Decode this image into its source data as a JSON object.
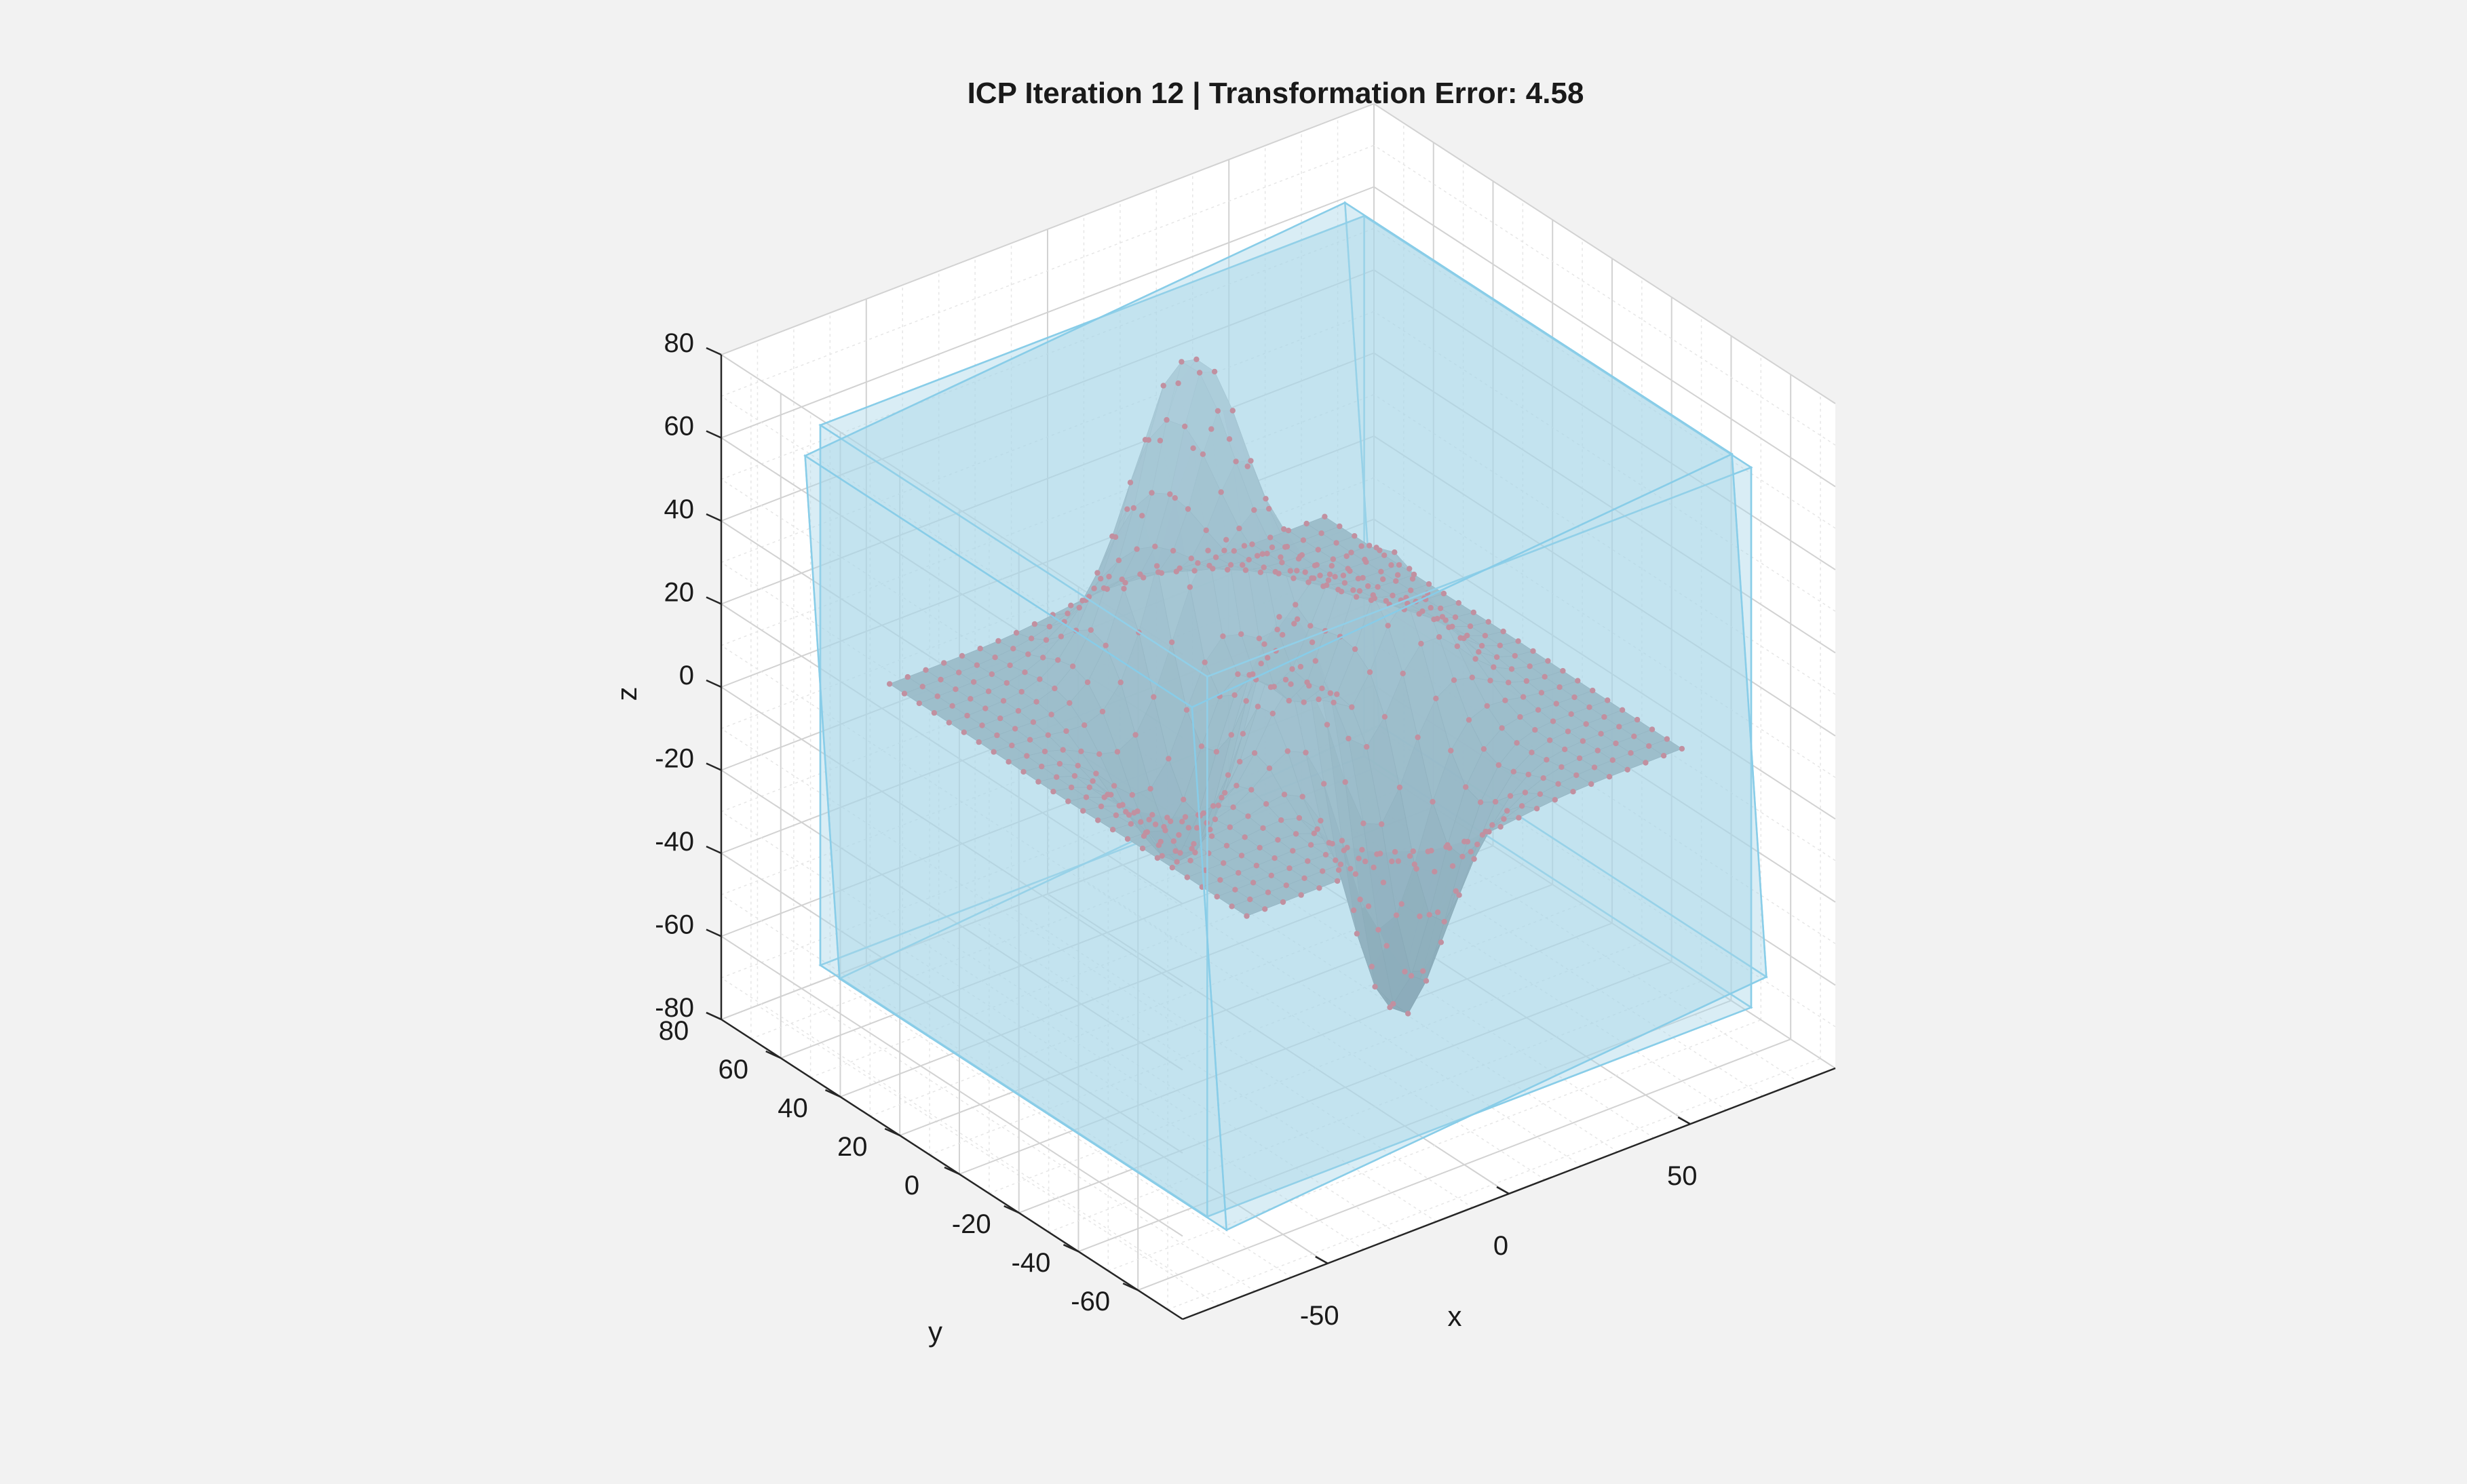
{
  "chart_data": {
    "type": "surface3d",
    "title": "ICP Iteration 12 | Transformation Error: 4.58",
    "xlabel": "x",
    "ylabel": "y",
    "zlabel": "z",
    "xlim": [
      -90,
      90
    ],
    "ylim": [
      -75,
      80
    ],
    "zlim": [
      -80,
      80
    ],
    "x_ticks": [
      "-50",
      "0",
      "50"
    ],
    "y_ticks": [
      "80",
      "60",
      "40",
      "20",
      "0",
      "-20",
      "-40",
      "-60"
    ],
    "z_ticks": [
      "80",
      "60",
      "40",
      "20",
      "0",
      "-20",
      "-40",
      "-60",
      "-80"
    ],
    "grid": true,
    "minor_grid": true,
    "view": {
      "azimuth": -37.5,
      "elevation": 30
    },
    "surface": {
      "name": "",
      "grid_range": [
        -60,
        60
      ],
      "grid_steps": 24,
      "z_peak": 78,
      "z_min": -70,
      "fill_color": "#8fa7b3",
      "point_color": "#d9505e"
    },
    "bounding_boxes": [
      {
        "x": [
          -75,
          75
        ],
        "y": [
          -65,
          65
        ],
        "z": [
          -65,
          65
        ],
        "rotation_deg": 0
      },
      {
        "x": [
          -75,
          75
        ],
        "y": [
          -65,
          65
        ],
        "z": [
          -65,
          65
        ],
        "rotation_deg": 7
      }
    ],
    "colors": {
      "background": "#f2f2f2",
      "axes_face": "#ffffff",
      "box_fill": "#a8d8ea",
      "box_edge": "#87cce8",
      "grid": "#dcdcdc",
      "axis_line": "#262626"
    }
  }
}
